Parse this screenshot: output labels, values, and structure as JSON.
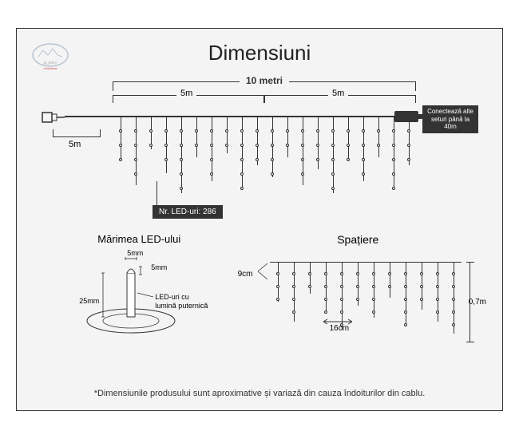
{
  "title": "Dimensiuni",
  "logo_text1": "FLIPPY",
  "logo_text2": "christmas",
  "main": {
    "total_length": "10 metri",
    "half_length": "5m",
    "lead_length": "5m",
    "connect_text": "Conectează alte seturi până la 40m",
    "led_count": "Nr. LED-uri: 286",
    "strand_heights": [
      55,
      85,
      40,
      70,
      95,
      50,
      80,
      45,
      90,
      60,
      75,
      50,
      85,
      65,
      95,
      55,
      80,
      50,
      90,
      60
    ],
    "bulb_spacing": 18,
    "colors": {
      "line": "#333333",
      "bg": "#f4f4f4",
      "box_bg": "#333333",
      "box_text": "#ffffff"
    }
  },
  "led_size": {
    "title": "Mărimea LED-ului",
    "dim_5mm": "5mm",
    "dim_25mm": "25mm",
    "desc": "LED-uri cu lumină puternică"
  },
  "spacing": {
    "title": "Spațiere",
    "gap_9cm": "9cm",
    "gap_16cm": "16cm",
    "height_07m": "0,7m",
    "strand_heights": [
      50,
      75,
      40,
      65,
      85,
      55,
      70,
      45,
      80,
      60,
      75,
      90
    ]
  },
  "footnote": "*Dimensiunile produsului sunt aproximative și variază din cauza îndoiturilor din cablu."
}
